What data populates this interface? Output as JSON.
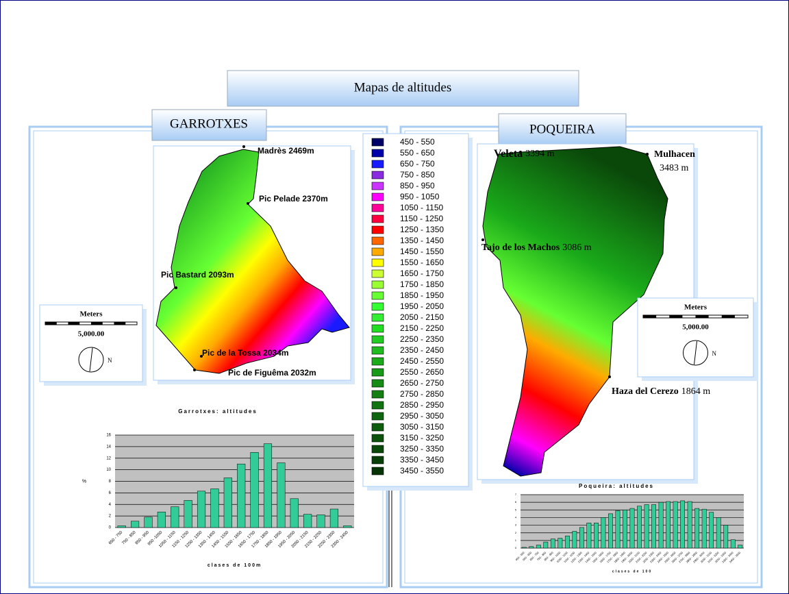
{
  "title": "Mapas de altitudes",
  "left": {
    "title": "GARROTXES",
    "peaks": [
      "Madrès 2469m",
      "Pic Pelade 2370m",
      "Pic Bastard 2093m",
      "Pic de la Tossa 2034m",
      "Pic de Figuêma 2032m"
    ],
    "scale": {
      "unit": "Meters",
      "distance": "5,000.00",
      "north": "N"
    },
    "histogram": {
      "type": "bar",
      "title": "Garrotxes: altitudes",
      "x_label": "clases de 100m",
      "y_label": "%",
      "categories": [
        "650 - 750",
        "750 - 850",
        "850 - 950",
        "950 -1050",
        "1050 - 1150",
        "1150 - 1250",
        "1250 - 1350",
        "1350 - 1450",
        "1450 - 1550",
        "1550 - 1650",
        "1650 - 1750",
        "1750 - 1850",
        "1850 - 1950",
        "1950 - 2050",
        "2050 - 2150",
        "2150 - 2250",
        "2250 - 2350",
        "2350 - 2450"
      ],
      "values": [
        0.3,
        1.1,
        1.8,
        2.7,
        3.6,
        4.7,
        6.3,
        6.7,
        8.6,
        11,
        13,
        14.5,
        11.2,
        5,
        2.3,
        2.2,
        3.2,
        0.3
      ],
      "color": "#33cc99",
      "ylim": [
        0,
        16
      ],
      "yticks": [
        0,
        2,
        4,
        6,
        8,
        10,
        12,
        14,
        16
      ],
      "grid": true
    }
  },
  "legend": {
    "items": [
      {
        "label": "450 - 550",
        "color": "#000066"
      },
      {
        "label": "550 - 650",
        "color": "#0000aa"
      },
      {
        "label": "650 - 750",
        "color": "#1a1aff"
      },
      {
        "label": "750 - 850",
        "color": "#8a2be2"
      },
      {
        "label": "850 - 950",
        "color": "#cc33ff"
      },
      {
        "label": "950 - 1050",
        "color": "#ff00ff"
      },
      {
        "label": "1050 - 1150",
        "color": "#ff0099"
      },
      {
        "label": "1150 - 1250",
        "color": "#ff0040"
      },
      {
        "label": "1250 - 1350",
        "color": "#ff0000"
      },
      {
        "label": "1350 - 1450",
        "color": "#ff6600"
      },
      {
        "label": "1450 - 1550",
        "color": "#ffaa00"
      },
      {
        "label": "1550 - 1650",
        "color": "#ffff00"
      },
      {
        "label": "1650 - 1750",
        "color": "#ccff33"
      },
      {
        "label": "1750 - 1850",
        "color": "#99ff33"
      },
      {
        "label": "1850 - 1950",
        "color": "#66ff33"
      },
      {
        "label": "1950 - 2050",
        "color": "#33ff33"
      },
      {
        "label": "2050 - 2150",
        "color": "#33ee33"
      },
      {
        "label": "2150 - 2250",
        "color": "#22dd22"
      },
      {
        "label": "2250 - 2350",
        "color": "#22cc22"
      },
      {
        "label": "2350 - 2450",
        "color": "#1fbb1f"
      },
      {
        "label": "2450 - 2550",
        "color": "#1aaa1a"
      },
      {
        "label": "2550 - 2650",
        "color": "#189918"
      },
      {
        "label": "2650 - 2750",
        "color": "#168c16"
      },
      {
        "label": "2750 - 2850",
        "color": "#148014"
      },
      {
        "label": "2850 - 2950",
        "color": "#127312"
      },
      {
        "label": "2950 - 3050",
        "color": "#106610"
      },
      {
        "label": "3050 - 3150",
        "color": "#0e5c0e"
      },
      {
        "label": "3150 - 3250",
        "color": "#0c520c"
      },
      {
        "label": "3250 - 3350",
        "color": "#0a480a"
      },
      {
        "label": "3350 - 3450",
        "color": "#083e08"
      },
      {
        "label": "3450 - 3550",
        "color": "#063406"
      }
    ]
  },
  "right": {
    "title": "POQUEIRA",
    "peaks": [
      {
        "name": "Veleta",
        "elevation": "3394 m"
      },
      {
        "name": "Mulhacen",
        "elevation": "3483 m"
      },
      {
        "name": "Tajo de los Machos",
        "elevation": "3086 m"
      },
      {
        "name": "Haza del Cerezo",
        "elevation": "1864 m"
      }
    ],
    "scale": {
      "unit": "Meters",
      "distance": "5,000.00",
      "north": "N"
    },
    "histogram": {
      "type": "bar",
      "title": "Poqueira: altitudes",
      "x_label": "clases de 100",
      "categories": [
        "450 - 550",
        "550 - 650",
        "650 - 750",
        "750 - 850",
        "850 - 950",
        "950 - 1050",
        "1050 - 1150",
        "1150 - 1250",
        "1250 - 1350",
        "1350 - 1450",
        "1450 - 1550",
        "1550 - 1650",
        "1650 - 1750",
        "1750 - 1850",
        "1850 - 1950",
        "1950 - 2050",
        "2050 - 2150",
        "2150 - 2250",
        "2250 - 2350",
        "2350 - 2450",
        "2450 - 2550",
        "2550 - 2650",
        "2650 - 2750",
        "2750 - 2850",
        "2850 - 2950",
        "2950 - 3050",
        "3050 - 3150",
        "3150 - 3250",
        "3250 - 3350",
        "3350 - 3450",
        "3450 - 3550"
      ],
      "values": [
        0.1,
        0.2,
        0.4,
        0.8,
        1.2,
        1.3,
        1.6,
        2.2,
        2.7,
        3.3,
        3.3,
        4,
        4.5,
        4.9,
        5,
        5.2,
        5.5,
        5.7,
        5.7,
        6,
        6.1,
        6.1,
        6.2,
        6.1,
        5.2,
        5.1,
        4.7,
        4,
        3,
        1.1,
        0.4
      ],
      "color": "#33cc99",
      "ylim": [
        0,
        7
      ],
      "yticks": [
        0,
        1,
        2,
        3,
        4,
        5,
        6,
        7
      ],
      "grid": true
    }
  }
}
